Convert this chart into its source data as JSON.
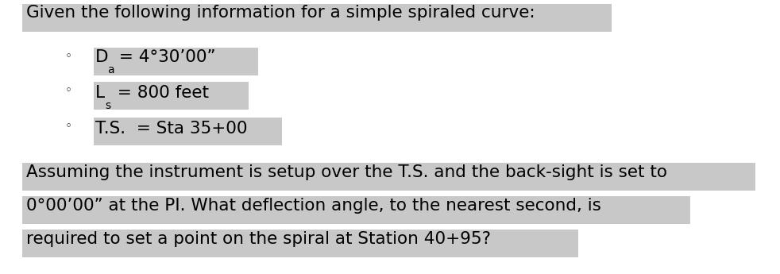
{
  "title_line": "Given the following information for a simple spiraled curve:",
  "bullet1_D": "D",
  "bullet1_sub_a": "a",
  "bullet1_rest": " = 4°30’00”",
  "bullet2_L": "L",
  "bullet2_sub_s": "s",
  "bullet2_rest": " = 800 feet",
  "bullet3": "T.S.  = Sta 35+00",
  "para_line1": "Assuming the instrument is setup over the T.S. and the back-sight is set to",
  "para_line2": "0°00’00” at the PI. What deflection angle, to the nearest second, is",
  "para_line3": "required to set a point on the spiral at Station 40+95?",
  "bg_color": "#ffffff",
  "highlight_color": "#c8c8c8",
  "font_size": 15.5
}
